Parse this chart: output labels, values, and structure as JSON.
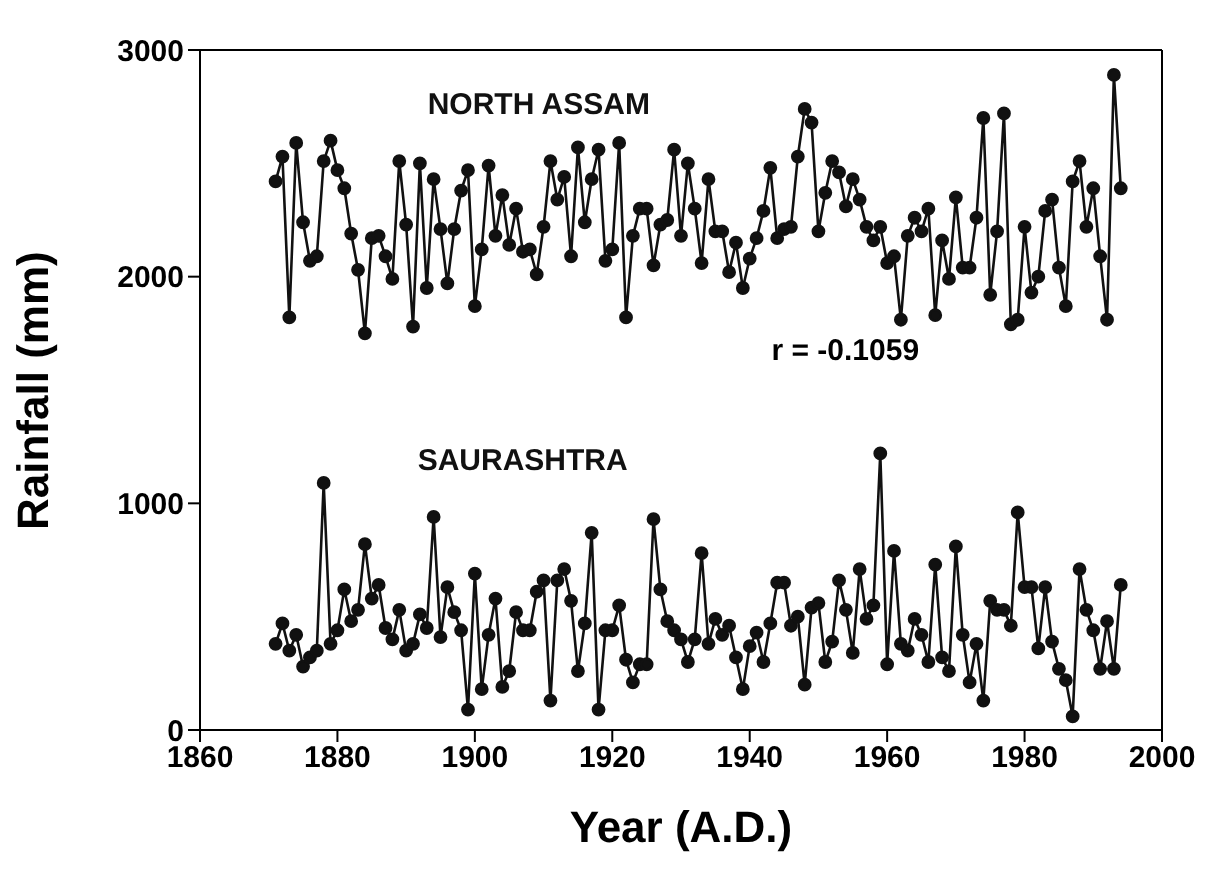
{
  "chart_data": {
    "type": "line",
    "xlabel": "Year (A.D.)",
    "ylabel": "Rainfall (mm)",
    "annotations": [
      "r = -0.1059"
    ],
    "x": [
      1871,
      1872,
      1873,
      1874,
      1875,
      1876,
      1877,
      1878,
      1879,
      1880,
      1881,
      1882,
      1883,
      1884,
      1885,
      1886,
      1887,
      1888,
      1889,
      1890,
      1891,
      1892,
      1893,
      1894,
      1895,
      1896,
      1897,
      1898,
      1899,
      1900,
      1901,
      1902,
      1903,
      1904,
      1905,
      1906,
      1907,
      1908,
      1909,
      1910,
      1911,
      1912,
      1913,
      1914,
      1915,
      1916,
      1917,
      1918,
      1919,
      1920,
      1921,
      1922,
      1923,
      1924,
      1925,
      1926,
      1927,
      1928,
      1929,
      1930,
      1931,
      1932,
      1933,
      1934,
      1935,
      1936,
      1937,
      1938,
      1939,
      1940,
      1941,
      1942,
      1943,
      1944,
      1945,
      1946,
      1947,
      1948,
      1949,
      1950,
      1951,
      1952,
      1953,
      1954,
      1955,
      1956,
      1957,
      1958,
      1959,
      1960,
      1961,
      1962,
      1963,
      1964,
      1965,
      1966,
      1967,
      1968,
      1969,
      1970,
      1971,
      1972,
      1973,
      1974,
      1975,
      1976,
      1977,
      1978,
      1979,
      1980,
      1981,
      1982,
      1983,
      1984,
      1985,
      1986,
      1987,
      1988,
      1989,
      1990,
      1991,
      1992,
      1993,
      1994
    ],
    "series": [
      {
        "name": "NORTH ASSAM",
        "color": "#111111",
        "values": [
          2420,
          2530,
          1820,
          2590,
          2240,
          2070,
          2090,
          2510,
          2600,
          2470,
          2390,
          2190,
          2030,
          1750,
          2170,
          2180,
          2090,
          1990,
          2510,
          2230,
          1780,
          2500,
          1950,
          2430,
          2210,
          1970,
          2210,
          2380,
          2470,
          1870,
          2120,
          2490,
          2180,
          2360,
          2140,
          2300,
          2110,
          2120,
          2010,
          2220,
          2510,
          2340,
          2440,
          2090,
          2570,
          2240,
          2430,
          2560,
          2070,
          2120,
          2590,
          1820,
          2180,
          2300,
          2300,
          2050,
          2230,
          2250,
          2560,
          2180,
          2500,
          2300,
          2060,
          2430,
          2200,
          2200,
          2020,
          2150,
          1950,
          2080,
          2170,
          2290,
          2480,
          2170,
          2210,
          2220,
          2530,
          2740,
          2680,
          2200,
          2370,
          2510,
          2460,
          2310,
          2430,
          2340,
          2220,
          2160,
          2220,
          2060,
          2090,
          1810,
          2180,
          2260,
          2200,
          2300,
          1830,
          2160,
          1990,
          2350,
          2040,
          2040,
          2260,
          2700,
          1920,
          2200,
          2720,
          1790,
          1810,
          2220,
          1930,
          2000,
          2290,
          2340,
          2040,
          1870,
          2420,
          2510,
          2220,
          2390,
          2090,
          1810,
          2890,
          2390
        ]
      },
      {
        "name": "SAURASHTRA",
        "color": "#111111",
        "values": [
          380,
          470,
          350,
          420,
          280,
          320,
          350,
          1090,
          380,
          440,
          620,
          480,
          530,
          820,
          580,
          640,
          450,
          400,
          530,
          350,
          380,
          510,
          450,
          940,
          410,
          630,
          520,
          440,
          90,
          690,
          180,
          420,
          580,
          190,
          260,
          520,
          440,
          440,
          610,
          660,
          130,
          660,
          710,
          570,
          260,
          470,
          870,
          90,
          440,
          440,
          550,
          310,
          210,
          290,
          290,
          930,
          620,
          480,
          440,
          400,
          300,
          400,
          780,
          380,
          490,
          420,
          460,
          320,
          180,
          370,
          430,
          300,
          470,
          650,
          650,
          460,
          500,
          200,
          540,
          560,
          300,
          390,
          660,
          530,
          340,
          710,
          490,
          550,
          1220,
          290,
          790,
          380,
          350,
          490,
          420,
          300,
          730,
          320,
          260,
          810,
          420,
          210,
          380,
          130,
          570,
          530,
          530,
          460,
          960,
          630,
          630,
          360,
          630,
          390,
          270,
          220,
          60,
          710,
          530,
          440,
          270,
          480,
          270,
          640
        ]
      }
    ],
    "xlim": [
      1860,
      2000
    ],
    "xticks": [
      1860,
      1880,
      1900,
      1920,
      1940,
      1960,
      1980,
      2000
    ],
    "ylim": [
      0,
      3000
    ],
    "yticks": [
      0,
      1000,
      2000,
      3000
    ],
    "marker": "circle",
    "line_style": "solid",
    "grid": false,
    "legend": false
  }
}
